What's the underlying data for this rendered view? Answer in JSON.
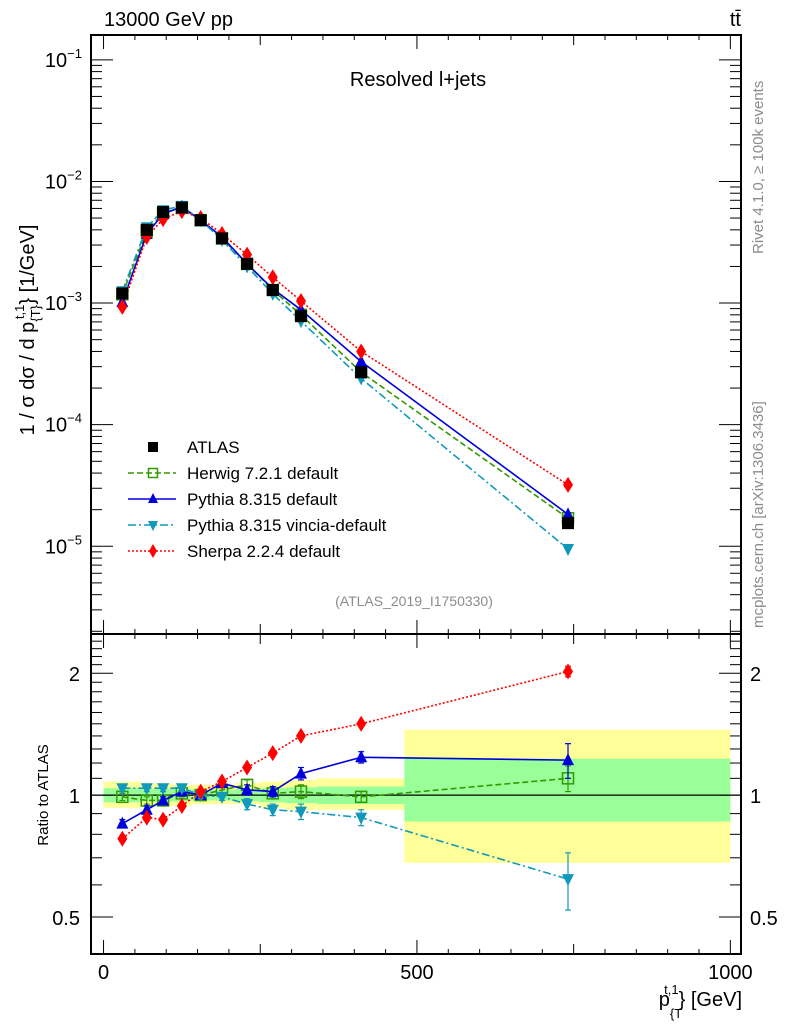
{
  "header": {
    "left_label": "13000 GeV pp",
    "right_label": "tt̄"
  },
  "side_notes": {
    "rivet": "Rivet 4.1.0, ≥ 100k events",
    "mcplots": "mcplots.cern.ch [arXiv:1306.3436]"
  },
  "chart_data": [
    {
      "type": "line",
      "panel": "main",
      "title": "Resolved l+jets",
      "analysis_tag": "(ATLAS_2019_I1750330)",
      "xlabel": "p_{T}^{t,1} [GeV]",
      "ylabel": "1 / σ dσ / d p_{T}^{t,1} [1/GeV]",
      "yscale": "log",
      "xlim": [
        -20,
        1017
      ],
      "ylim": [
        1.9e-06,
        0.16
      ],
      "y_ticks": [
        {
          "value": 0.1,
          "label": "10^-1"
        },
        {
          "value": 0.01,
          "label": "10^-2"
        },
        {
          "value": 0.001,
          "label": "10^-3"
        },
        {
          "value": 0.0001,
          "label": "10^-4"
        },
        {
          "value": 1e-05,
          "label": "10^-5"
        }
      ],
      "legend_position": "bottom-left",
      "x": [
        30,
        69,
        95,
        125,
        155,
        189,
        229,
        270,
        315,
        411,
        741
      ],
      "series": [
        {
          "name": "ATLAS",
          "style": "data",
          "color": "#000000",
          "marker": "square-filled",
          "values": [
            0.0012,
            0.004,
            0.0056,
            0.0061,
            0.0048,
            0.0034,
            0.0021,
            0.00128,
            0.00078,
            0.00027,
            1.55e-05
          ]
        },
        {
          "name": "Herwig 7.2.1 default",
          "style": "dashed",
          "color": "#339900",
          "marker": "square-open",
          "values": [
            0.00118,
            0.0039,
            0.0055,
            0.0061,
            0.0048,
            0.0034,
            0.0021,
            0.00128,
            0.0008,
            0.00027,
            1.7e-05
          ]
        },
        {
          "name": "Pythia 8.315 default",
          "style": "solid",
          "color": "#0000dd",
          "marker": "triangle-up",
          "values": [
            0.00102,
            0.0037,
            0.0054,
            0.0062,
            0.0048,
            0.0035,
            0.0021,
            0.00131,
            0.00088,
            0.00033,
            1.83e-05
          ]
        },
        {
          "name": "Pythia 8.315 vincia-default",
          "style": "dashdot",
          "color": "#1199bb",
          "marker": "triangle-down",
          "values": [
            0.00125,
            0.0042,
            0.0058,
            0.0063,
            0.0048,
            0.0033,
            0.002,
            0.00119,
            0.00071,
            0.00024,
            9.5e-06
          ]
        },
        {
          "name": "Sherpa 2.2.4 default",
          "style": "dotted",
          "color": "#ff0000",
          "marker": "diamond",
          "values": [
            0.00093,
            0.0035,
            0.0049,
            0.0057,
            0.005,
            0.0037,
            0.0025,
            0.00163,
            0.00104,
            0.0004,
            3.2e-05
          ]
        }
      ]
    },
    {
      "type": "line",
      "panel": "ratio",
      "ylabel": "Ratio to ATLAS",
      "xlabel": "p_{T}^{t,1} [GeV]",
      "yscale": "log",
      "xlim": [
        -20,
        1017
      ],
      "ylim": [
        0.405,
        2.5
      ],
      "y_ticks": [
        {
          "value": 0.5,
          "label": "0.5"
        },
        {
          "value": 1,
          "label": "1"
        },
        {
          "value": 2,
          "label": "2"
        }
      ],
      "x_ticks": [
        {
          "value": 0,
          "label": "0"
        },
        {
          "value": 500,
          "label": "500"
        },
        {
          "value": 1000,
          "label": "1000"
        }
      ],
      "bands": {
        "bin_edges": [
          0,
          60,
          80,
          110,
          140,
          170,
          210,
          250,
          290,
          340,
          480,
          1000
        ],
        "stat_color": "#99ff99",
        "total_color": "#ffff99",
        "stat_half": [
          0.04,
          0.035,
          0.035,
          0.035,
          0.03,
          0.03,
          0.035,
          0.04,
          0.045,
          0.05,
          0.17
        ],
        "total_lo": [
          0.93,
          0.94,
          0.94,
          0.94,
          0.95,
          0.95,
          0.95,
          0.93,
          0.92,
          0.92,
          0.68
        ],
        "total_hi": [
          1.08,
          1.07,
          1.07,
          1.06,
          1.06,
          1.06,
          1.07,
          1.08,
          1.09,
          1.1,
          1.45
        ],
        "stat_hi_last": 1.23,
        "stat_lo_last": 0.86
      },
      "x": [
        30,
        69,
        95,
        125,
        155,
        189,
        229,
        270,
        315,
        411,
        741
      ],
      "series": [
        {
          "name": "Herwig 7.2.1 default",
          "style": "dashed",
          "color": "#339900",
          "marker": "square-open",
          "values": [
            0.99,
            0.97,
            0.97,
            1.01,
            1.0,
            1.03,
            1.06,
            1.01,
            1.02,
            0.99,
            1.1
          ],
          "err": [
            0.02,
            0.02,
            0.02,
            0.02,
            0.02,
            0.02,
            0.03,
            0.03,
            0.04,
            0.03,
            0.08
          ]
        },
        {
          "name": "Pythia 8.315 default",
          "style": "solid",
          "color": "#0000dd",
          "marker": "triangle-up",
          "values": [
            0.85,
            0.92,
            0.97,
            1.02,
            1.0,
            1.07,
            1.03,
            1.02,
            1.13,
            1.24,
            1.22
          ],
          "err": [
            0.02,
            0.02,
            0.02,
            0.02,
            0.02,
            0.02,
            0.03,
            0.03,
            0.04,
            0.04,
            0.12
          ]
        },
        {
          "name": "Pythia 8.315 vincia-default",
          "style": "dashdot",
          "color": "#1199bb",
          "marker": "triangle-down",
          "values": [
            1.04,
            1.04,
            1.04,
            1.04,
            1.0,
            0.99,
            0.95,
            0.92,
            0.91,
            0.88,
            0.62
          ],
          "err": [
            0.02,
            0.02,
            0.02,
            0.02,
            0.02,
            0.02,
            0.03,
            0.03,
            0.04,
            0.04,
            0.1
          ]
        },
        {
          "name": "Sherpa 2.2.4 default",
          "style": "dotted",
          "color": "#ff0000",
          "marker": "diamond",
          "values": [
            0.78,
            0.88,
            0.87,
            0.94,
            1.02,
            1.08,
            1.17,
            1.27,
            1.4,
            1.5,
            2.02
          ],
          "err": [
            0.01,
            0.01,
            0.01,
            0.01,
            0.01,
            0.01,
            0.01,
            0.01,
            0.02,
            0.02,
            0.06
          ]
        }
      ]
    }
  ]
}
